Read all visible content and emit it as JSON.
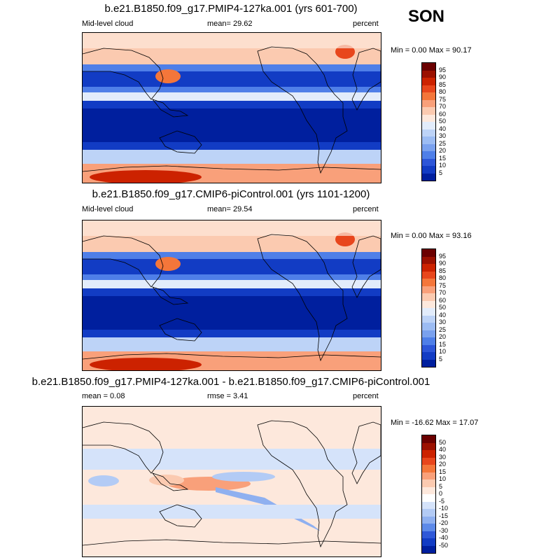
{
  "season": "SON",
  "panels": [
    {
      "title": "b.e21.B1850.f09_g17.PMIP4-127ka.001 (yrs 601-700)",
      "left_label": "Mid-level cloud",
      "mid_label": "mean=  29.62",
      "right_label": "percent",
      "minmax": "Min =  0.00 Max =  90.17",
      "colorbar": {
        "labels": [
          "95",
          "90",
          "85",
          "80",
          "75",
          "70",
          "60",
          "50",
          "40",
          "30",
          "25",
          "20",
          "15",
          "10",
          "5"
        ],
        "colors": [
          "#6b0000",
          "#9b1000",
          "#cc2200",
          "#e8461c",
          "#f4763a",
          "#f9a07a",
          "#fbcab0",
          "#fde8dc",
          "#e2ecfb",
          "#bdd3f7",
          "#9cbcf3",
          "#7aa1ee",
          "#4f7fe8",
          "#2d56d8",
          "#123cc4",
          "#001f9e"
        ]
      },
      "field": "mean"
    },
    {
      "title": "b.e21.B1850.f09_g17.CMIP6-piControl.001 (yrs 1101-1200)",
      "left_label": "Mid-level cloud",
      "mid_label": "mean=  29.54",
      "right_label": "percent",
      "minmax": "Min =  0.00 Max =  93.16",
      "colorbar": {
        "labels": [
          "95",
          "90",
          "85",
          "80",
          "75",
          "70",
          "60",
          "50",
          "40",
          "30",
          "25",
          "20",
          "15",
          "10",
          "5"
        ],
        "colors": [
          "#6b0000",
          "#9b1000",
          "#cc2200",
          "#e8461c",
          "#f4763a",
          "#f9a07a",
          "#fbcab0",
          "#fde8dc",
          "#e2ecfb",
          "#bdd3f7",
          "#9cbcf3",
          "#7aa1ee",
          "#4f7fe8",
          "#2d56d8",
          "#123cc4",
          "#001f9e"
        ]
      },
      "field": "mean"
    },
    {
      "title": "b.e21.B1850.f09_g17.PMIP4-127ka.001 - b.e21.B1850.f09_g17.CMIP6-piControl.001",
      "left_label": "mean =   0.08",
      "mid_label": "rmse =   3.41",
      "right_label": "percent",
      "minmax": "Min = -16.62 Max =  17.07",
      "colorbar": {
        "labels": [
          "50",
          "40",
          "30",
          "20",
          "15",
          "10",
          "5",
          "0",
          "-5",
          "-10",
          "-15",
          "-20",
          "-30",
          "-40",
          "-50"
        ],
        "colors": [
          "#6b0000",
          "#9b1000",
          "#cc2200",
          "#e8461c",
          "#f4763a",
          "#f9a07a",
          "#fbcab0",
          "#fde8dc",
          "#ffffff",
          "#d5e3fa",
          "#b3cbf5",
          "#8fb0f0",
          "#5d8ae9",
          "#2f58d8",
          "#123cc4",
          "#001f9e"
        ]
      },
      "field": "diff"
    }
  ]
}
